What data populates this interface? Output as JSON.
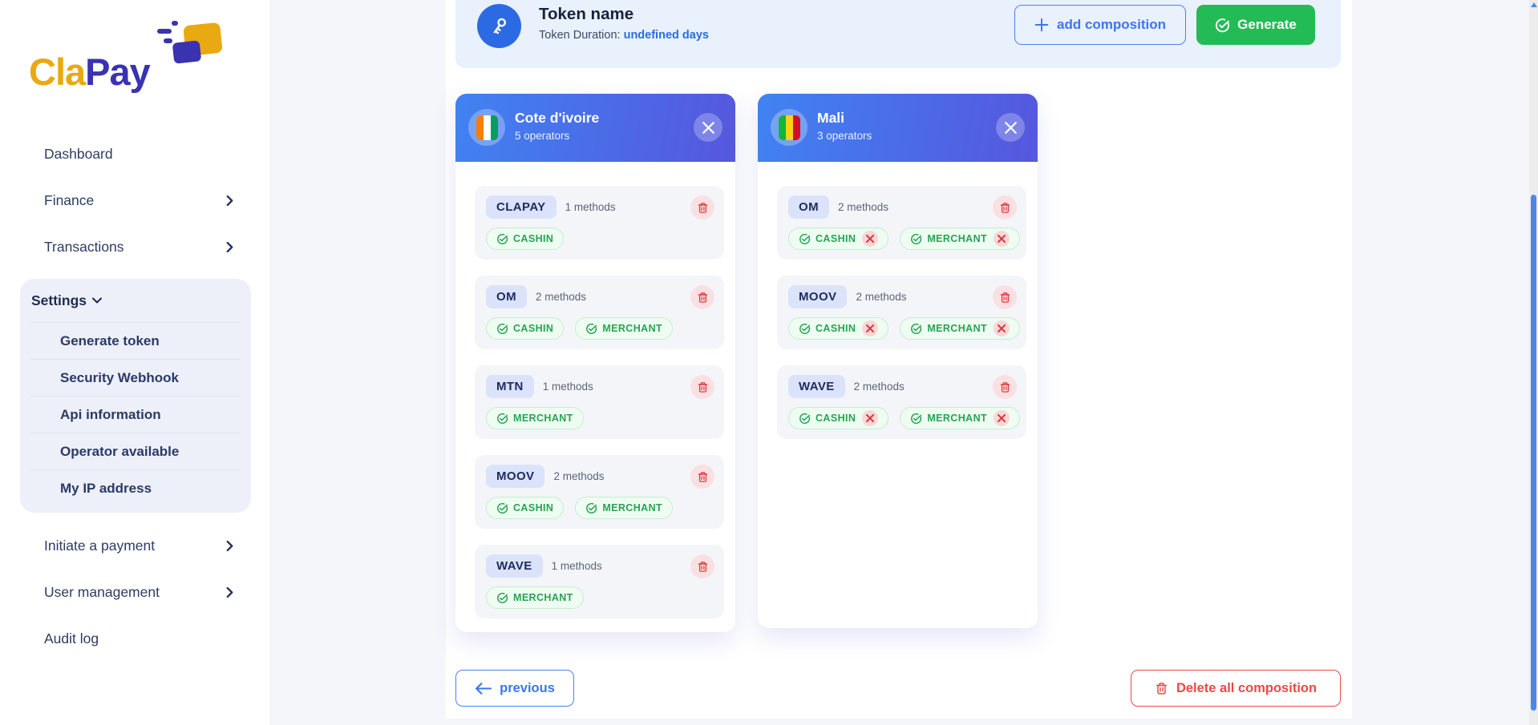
{
  "brand": {
    "name_prefix": "Cla",
    "name_suffix": "Pay"
  },
  "sidebar": {
    "items": [
      {
        "label": "Dashboard",
        "chevron": false
      },
      {
        "label": "Finance",
        "chevron": true
      },
      {
        "label": "Transactions",
        "chevron": true
      }
    ],
    "settings": {
      "label": "Settings",
      "items": [
        "Generate token",
        "Security Webhook",
        "Api information",
        "Operator available",
        "My IP address"
      ]
    },
    "items_bottom": [
      {
        "label": "Initiate a payment",
        "chevron": true
      },
      {
        "label": "User management",
        "chevron": true
      },
      {
        "label": "Audit log",
        "chevron": false
      }
    ]
  },
  "header": {
    "title": "Token name",
    "duration_label": "Token Duration:",
    "duration_value": "undefined days",
    "add_button": "add composition",
    "generate_button": "Generate"
  },
  "cards": [
    {
      "country": "Cote d'ivoire",
      "operators_count": "5 operators",
      "flag_colors": [
        "#f77f00",
        "#ffffff",
        "#009e60"
      ],
      "operators": [
        {
          "name": "CLAPAY",
          "methods_label": "1 methods",
          "methods": [
            {
              "label": "CASHIN",
              "removable": false
            }
          ]
        },
        {
          "name": "OM",
          "methods_label": "2 methods",
          "methods": [
            {
              "label": "CASHIN",
              "removable": false
            },
            {
              "label": "MERCHANT",
              "removable": false
            }
          ]
        },
        {
          "name": "MTN",
          "methods_label": "1 methods",
          "methods": [
            {
              "label": "MERCHANT",
              "removable": false
            }
          ]
        },
        {
          "name": "MOOV",
          "methods_label": "2 methods",
          "methods": [
            {
              "label": "CASHIN",
              "removable": false
            },
            {
              "label": "MERCHANT",
              "removable": false
            }
          ]
        },
        {
          "name": "WAVE",
          "methods_label": "1 methods",
          "methods": [
            {
              "label": "MERCHANT",
              "removable": false
            }
          ]
        }
      ]
    },
    {
      "country": "Mali",
      "operators_count": "3 operators",
      "flag_colors": [
        "#14b53a",
        "#fcd116",
        "#ce1126"
      ],
      "operators": [
        {
          "name": "OM",
          "methods_label": "2 methods",
          "methods": [
            {
              "label": "CASHIN",
              "removable": true
            },
            {
              "label": "MERCHANT",
              "removable": true
            }
          ]
        },
        {
          "name": "MOOV",
          "methods_label": "2 methods",
          "methods": [
            {
              "label": "CASHIN",
              "removable": true
            },
            {
              "label": "MERCHANT",
              "removable": true
            }
          ]
        },
        {
          "name": "WAVE",
          "methods_label": "2 methods",
          "methods": [
            {
              "label": "CASHIN",
              "removable": true
            },
            {
              "label": "MERCHANT",
              "removable": true
            }
          ]
        }
      ]
    }
  ],
  "footer": {
    "previous": "previous",
    "delete_all": "Delete all composition"
  },
  "colors": {
    "accent_blue": "#2c6ae4",
    "green": "#23bb55",
    "red": "#e23b3b",
    "gold": "#e9a912",
    "indigo": "#3a33b0",
    "header_band": "#e9f1fd",
    "card_gradient_start": "#4083f2",
    "card_gradient_end": "#5657dd"
  }
}
